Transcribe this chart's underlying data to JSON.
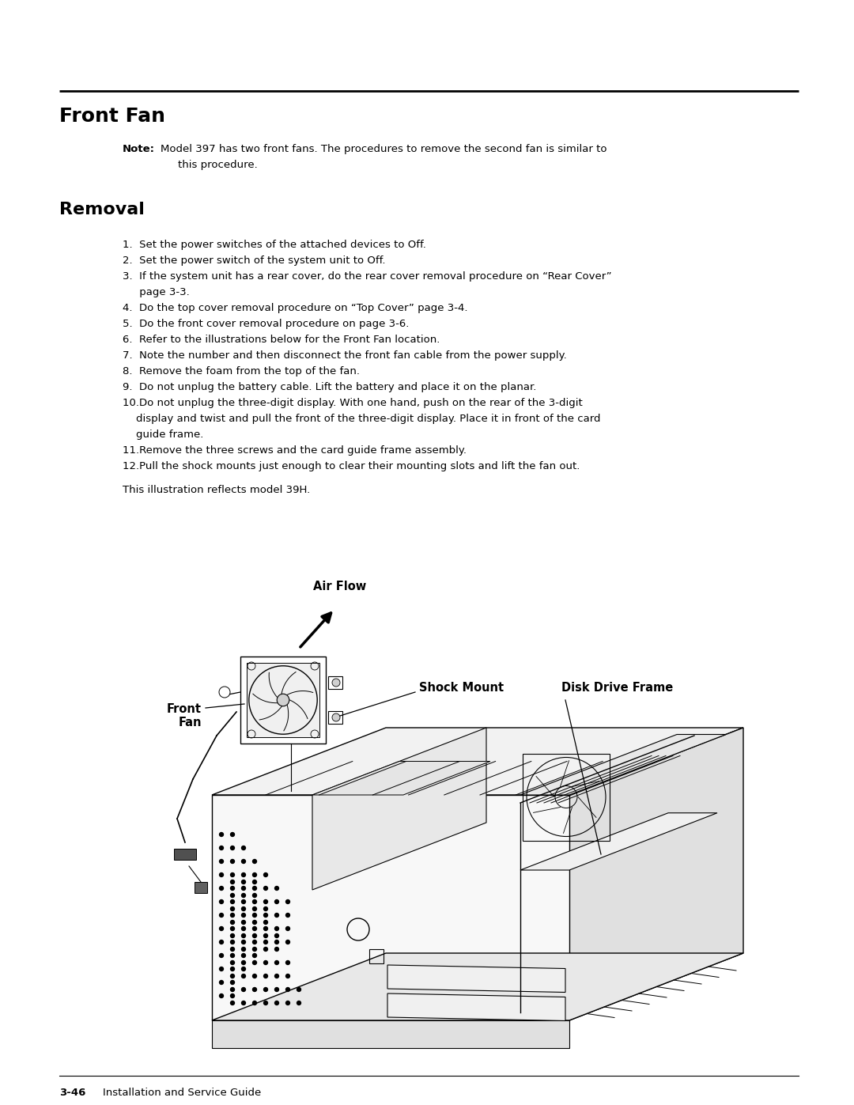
{
  "title": "Front Fan",
  "section": "Removal",
  "note_bold": "Note:",
  "note_text1": "Model 397 has two front fans. The procedures to remove the second fan is similar to",
  "note_text2": "this procedure.",
  "steps": [
    "1.  Set the power switches of the attached devices to Off.",
    "2.  Set the power switch of the system unit to Off.",
    "3.  If the system unit has a rear cover, do the rear cover removal procedure on “Rear Cover”",
    "     page 3-3.",
    "4.  Do the top cover removal procedure on “Top Cover” page 3-4.",
    "5.  Do the front cover removal procedure on page 3-6.",
    "6.  Refer to the illustrations below for the Front Fan location.",
    "7.  Note the number and then disconnect the front fan cable from the power supply.",
    "8.  Remove the foam from the top of the fan.",
    "9.  Do not unplug the battery cable. Lift the battery and place it on the planar.",
    "10.Do not unplug the three-digit display. With one hand, push on the rear of the 3-digit",
    "    display and twist and pull the front of the three-digit display. Place it in front of the card",
    "    guide frame.",
    "11.Remove the three screws and the card guide frame assembly.",
    "12.Pull the shock mounts just enough to clear their mounting slots and lift the fan out."
  ],
  "illustration_note": "This illustration reflects model 39H.",
  "label_air_flow": "Air Flow",
  "label_shock_mount": "Shock Mount",
  "label_disk_drive_frame": "Disk Drive Frame",
  "label_front_fan": "Front\nFan",
  "footer_bold": "3-46",
  "footer_text": "Installation and Service Guide",
  "bg_color": "#ffffff",
  "text_color": "#000000",
  "title_fontsize": 18,
  "section_fontsize": 16,
  "body_fontsize": 9.5,
  "label_fontsize": 10.5
}
